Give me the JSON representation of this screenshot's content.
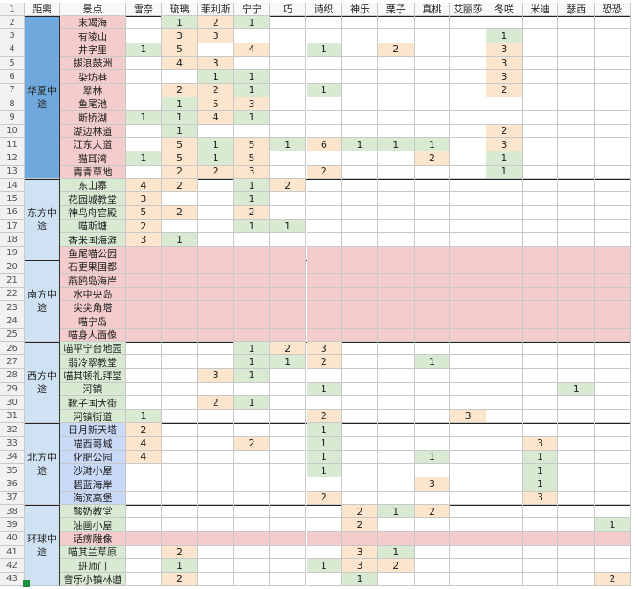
{
  "row_numbers": [
    1,
    2,
    3,
    4,
    5,
    6,
    7,
    8,
    9,
    10,
    11,
    12,
    13,
    14,
    15,
    16,
    17,
    18,
    19,
    20,
    21,
    22,
    23,
    24,
    25,
    26,
    27,
    28,
    29,
    30,
    31,
    32,
    33,
    34,
    35,
    36,
    37,
    38,
    39,
    40,
    41,
    42,
    43
  ],
  "columns": [
    "距离",
    "景点",
    "雪奈",
    "琉璃",
    "菲利斯",
    "宁宁",
    "巧",
    "诗织",
    "神乐",
    "栗子",
    "真桃",
    "艾丽莎",
    "冬咲",
    "米迪",
    "瑟西",
    "恐恐"
  ],
  "groups": [
    {
      "distance": "华夏中途",
      "spots": [
        {
          "name": "末竭海",
          "values": [
            null,
            1,
            2,
            1,
            null,
            null,
            null,
            null,
            null,
            null,
            null,
            null,
            null,
            null
          ]
        },
        {
          "name": "有陵山",
          "values": [
            null,
            3,
            3,
            null,
            null,
            null,
            null,
            null,
            null,
            null,
            1,
            null,
            null,
            null
          ]
        },
        {
          "name": "井字里",
          "values": [
            1,
            5,
            null,
            4,
            null,
            1,
            null,
            2,
            null,
            null,
            3,
            null,
            null,
            null
          ]
        },
        {
          "name": "拔浪鼓洲",
          "values": [
            null,
            4,
            3,
            null,
            null,
            null,
            null,
            null,
            null,
            null,
            3,
            null,
            null,
            null
          ]
        },
        {
          "name": "染坊巷",
          "values": [
            null,
            null,
            1,
            1,
            null,
            null,
            null,
            null,
            null,
            null,
            3,
            null,
            null,
            null
          ]
        },
        {
          "name": "翠林",
          "values": [
            null,
            2,
            2,
            1,
            null,
            1,
            null,
            null,
            null,
            null,
            2,
            null,
            null,
            null
          ]
        },
        {
          "name": "鱼尾池",
          "values": [
            null,
            1,
            5,
            3,
            null,
            null,
            null,
            null,
            null,
            null,
            null,
            null,
            null,
            null
          ]
        },
        {
          "name": "断桥湖",
          "values": [
            1,
            1,
            4,
            1,
            null,
            null,
            null,
            null,
            null,
            null,
            null,
            null,
            null,
            null
          ]
        },
        {
          "name": "湖边林道",
          "values": [
            null,
            1,
            null,
            null,
            null,
            null,
            null,
            null,
            null,
            null,
            2,
            null,
            null,
            null
          ]
        },
        {
          "name": "江东大道",
          "values": [
            null,
            5,
            1,
            5,
            1,
            6,
            1,
            1,
            1,
            null,
            3,
            null,
            null,
            null
          ]
        },
        {
          "name": "猫耳湾",
          "values": [
            1,
            5,
            1,
            5,
            null,
            null,
            null,
            null,
            2,
            null,
            1,
            null,
            null,
            null
          ]
        },
        {
          "name": "青青草地",
          "values": [
            null,
            2,
            2,
            3,
            null,
            2,
            null,
            null,
            null,
            null,
            1,
            null,
            null,
            null
          ]
        }
      ]
    },
    {
      "distance": "东方中途",
      "spots": [
        {
          "name": "东山寨",
          "values": [
            4,
            2,
            null,
            1,
            2,
            null,
            null,
            null,
            null,
            null,
            null,
            null,
            null,
            null
          ]
        },
        {
          "name": "花园城教堂",
          "values": [
            3,
            null,
            null,
            1,
            null,
            null,
            null,
            null,
            null,
            null,
            null,
            null,
            null,
            null
          ]
        },
        {
          "name": "神鸟舟宫殿",
          "values": [
            5,
            2,
            null,
            2,
            null,
            null,
            null,
            null,
            null,
            null,
            null,
            null,
            null,
            null
          ]
        },
        {
          "name": "喵斯塘",
          "values": [
            2,
            null,
            null,
            1,
            1,
            null,
            null,
            null,
            null,
            null,
            null,
            null,
            null,
            null
          ]
        },
        {
          "name": "香米国海滩",
          "values": [
            3,
            1,
            null,
            null,
            null,
            null,
            null,
            null,
            null,
            null,
            null,
            null,
            null,
            null
          ]
        },
        {
          "name": "鱼尾喵公园",
          "values": [
            null,
            null,
            null,
            null,
            null,
            null,
            null,
            null,
            null,
            null,
            null,
            null,
            null,
            null
          ]
        }
      ]
    },
    {
      "distance": "南方中途",
      "spots": [
        {
          "name": "石更果国都",
          "values": [
            null,
            null,
            null,
            null,
            null,
            null,
            null,
            null,
            null,
            null,
            null,
            null,
            null,
            null
          ]
        },
        {
          "name": "燕鸥岛海岸",
          "values": [
            null,
            null,
            null,
            null,
            null,
            null,
            null,
            null,
            null,
            null,
            null,
            null,
            null,
            null
          ]
        },
        {
          "name": "水中央岛",
          "values": [
            null,
            null,
            null,
            null,
            null,
            null,
            null,
            null,
            null,
            null,
            null,
            null,
            null,
            null
          ]
        },
        {
          "name": "尖尖角塔",
          "values": [
            null,
            null,
            null,
            null,
            null,
            null,
            null,
            null,
            null,
            null,
            null,
            null,
            null,
            null
          ]
        },
        {
          "name": "喵宁岛",
          "values": [
            null,
            null,
            null,
            null,
            null,
            null,
            null,
            null,
            null,
            null,
            null,
            null,
            null,
            null
          ]
        },
        {
          "name": "喵身人面像",
          "values": [
            null,
            null,
            null,
            null,
            null,
            null,
            null,
            null,
            null,
            null,
            null,
            null,
            null,
            null
          ]
        }
      ]
    },
    {
      "distance": "西方中途",
      "spots": [
        {
          "name": "喵平宁台地园",
          "values": [
            null,
            null,
            null,
            1,
            2,
            3,
            null,
            null,
            null,
            null,
            null,
            null,
            null,
            null
          ]
        },
        {
          "name": "翡冷翠教堂",
          "values": [
            null,
            null,
            null,
            1,
            1,
            2,
            null,
            null,
            1,
            null,
            null,
            null,
            null,
            null
          ]
        },
        {
          "name": "喵其顿礼拜堂",
          "values": [
            null,
            null,
            3,
            1,
            null,
            null,
            null,
            null,
            null,
            null,
            null,
            null,
            null,
            null
          ]
        },
        {
          "name": "河镇",
          "values": [
            null,
            null,
            null,
            null,
            null,
            1,
            null,
            null,
            null,
            null,
            null,
            null,
            1,
            null
          ]
        },
        {
          "name": "靴子国大街",
          "values": [
            null,
            null,
            2,
            1,
            null,
            null,
            null,
            null,
            null,
            null,
            null,
            null,
            null,
            null
          ]
        },
        {
          "name": "河镇街道",
          "values": [
            1,
            null,
            null,
            null,
            null,
            2,
            null,
            null,
            null,
            3,
            null,
            null,
            null,
            null
          ]
        }
      ]
    },
    {
      "distance": "北方中途",
      "spots": [
        {
          "name": "日月新天塔",
          "values": [
            2,
            null,
            null,
            null,
            null,
            1,
            null,
            null,
            null,
            null,
            null,
            null,
            null,
            null
          ]
        },
        {
          "name": "喵西哥城",
          "values": [
            4,
            null,
            null,
            2,
            null,
            1,
            null,
            null,
            null,
            null,
            null,
            3,
            null,
            null
          ]
        },
        {
          "name": "化肥公园",
          "values": [
            4,
            null,
            null,
            null,
            null,
            1,
            null,
            null,
            1,
            null,
            null,
            1,
            null,
            null
          ]
        },
        {
          "name": "沙滩小屋",
          "values": [
            null,
            null,
            null,
            null,
            null,
            1,
            null,
            null,
            null,
            null,
            null,
            1,
            null,
            null
          ]
        },
        {
          "name": "碧蓝海岸",
          "values": [
            null,
            null,
            null,
            null,
            null,
            null,
            null,
            null,
            3,
            null,
            null,
            1,
            null,
            null
          ]
        },
        {
          "name": "海滨高堡",
          "values": [
            null,
            null,
            null,
            null,
            null,
            2,
            null,
            null,
            null,
            null,
            null,
            3,
            null,
            null
          ]
        }
      ]
    },
    {
      "distance": "环球中途",
      "spots": [
        {
          "name": "酸奶教堂",
          "values": [
            null,
            null,
            null,
            null,
            null,
            null,
            2,
            1,
            2,
            null,
            null,
            null,
            null,
            null
          ]
        },
        {
          "name": "油画小屋",
          "values": [
            null,
            null,
            null,
            null,
            null,
            null,
            2,
            null,
            null,
            null,
            null,
            null,
            null,
            1
          ]
        },
        {
          "name": "话痨雕像",
          "values": [
            null,
            null,
            null,
            null,
            null,
            null,
            null,
            null,
            null,
            null,
            null,
            null,
            null,
            null
          ]
        },
        {
          "name": "喵其兰草原",
          "values": [
            null,
            2,
            null,
            null,
            null,
            null,
            3,
            1,
            null,
            null,
            null,
            null,
            null,
            null
          ]
        },
        {
          "name": "班师门",
          "values": [
            null,
            1,
            null,
            null,
            null,
            1,
            3,
            2,
            null,
            null,
            null,
            null,
            null,
            null
          ]
        },
        {
          "name": "音乐小镇林道",
          "values": [
            null,
            2,
            null,
            null,
            null,
            null,
            1,
            null,
            null,
            null,
            null,
            null,
            null,
            2
          ]
        }
      ]
    }
  ]
}
